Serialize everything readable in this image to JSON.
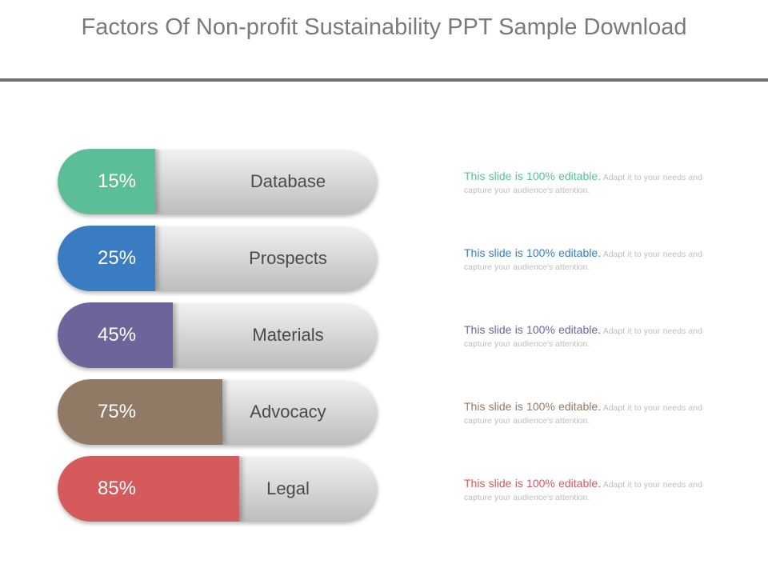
{
  "slide": {
    "title": "Factors Of Non-profit Sustainability PPT Sample Download"
  },
  "rows": [
    {
      "percent": "15%",
      "fill_fraction": 0.15,
      "label": "Database",
      "color": "#5bbe96",
      "lead": "This slide is 100% editable.",
      "body": " Adapt it to your needs and capture your audience's attention."
    },
    {
      "percent": "25%",
      "fill_fraction": 0.25,
      "label": "Prospects",
      "color": "#3a7cc2",
      "lead": "This slide is 100% editable.",
      "body": " Adapt it to your needs and capture your audience's attention."
    },
    {
      "percent": "45%",
      "fill_fraction": 0.45,
      "label": "Materials",
      "color": "#6d6499",
      "lead": "This slide is 100% editable.",
      "body": " Adapt it to your needs and capture your audience's attention."
    },
    {
      "percent": "75%",
      "fill_fraction": 0.75,
      "label": "Advocacy",
      "color": "#917a65",
      "lead": "This slide is 100% editable.",
      "body": " Adapt it to your needs and capture your audience's attention."
    },
    {
      "percent": "85%",
      "fill_fraction": 0.85,
      "label": "Legal",
      "color": "#d45a5c",
      "lead": "This slide is 100% editable.",
      "body": " Adapt it to your needs and capture your audience's attention."
    }
  ]
}
